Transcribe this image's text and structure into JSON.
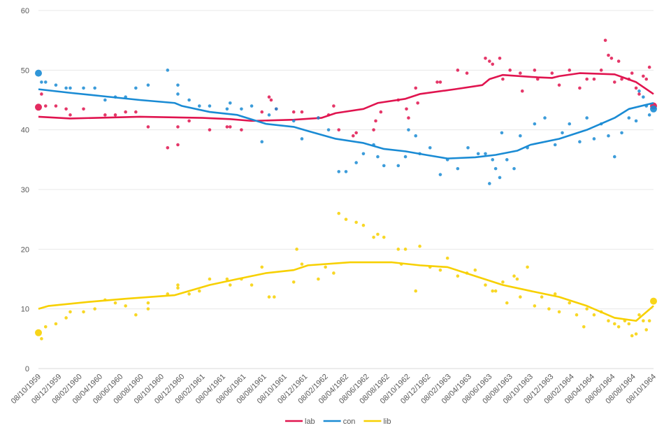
{
  "chart_data": {
    "type": "line",
    "title": "",
    "xlabel": "",
    "ylabel": "",
    "x_unit": "months since 08/10/1959",
    "xlim": [
      0,
      60
    ],
    "ylim": [
      0,
      60
    ],
    "y_ticks": [
      0,
      10,
      20,
      30,
      40,
      50,
      60
    ],
    "grid": true,
    "legend_position": "bottom",
    "x_tick_labels": [
      "08/10/1959",
      "08/12/1959",
      "08/02/1960",
      "08/04/1960",
      "08/06/1960",
      "08/08/1960",
      "08/10/1960",
      "08/12/1960",
      "08/02/1961",
      "08/04/1961",
      "08/06/1961",
      "08/08/1961",
      "08/10/1961",
      "08/12/1961",
      "08/02/1962",
      "08/04/1962",
      "08/06/1962",
      "08/08/1962",
      "08/10/1962",
      "08/12/1962",
      "08/02/1963",
      "08/04/1963",
      "08/06/1963",
      "08/08/1963",
      "08/10/1963",
      "08/12/1963",
      "08/02/1964",
      "08/04/1964",
      "08/06/1964",
      "08/08/1964",
      "08/10/1964"
    ],
    "series": [
      {
        "name": "lab",
        "color": "#e0144f",
        "trend": [
          [
            0,
            42.2
          ],
          [
            3.1,
            41.9
          ],
          [
            9.9,
            42.2
          ],
          [
            16,
            42.0
          ],
          [
            18.7,
            41.8
          ],
          [
            20.8,
            41.5
          ],
          [
            24.9,
            41.7
          ],
          [
            27.6,
            42
          ],
          [
            29,
            42.8
          ],
          [
            31.7,
            43.5
          ],
          [
            33.1,
            44.5
          ],
          [
            35.8,
            45.2
          ],
          [
            37.2,
            46
          ],
          [
            40.6,
            46.8
          ],
          [
            43.3,
            47.5
          ],
          [
            44,
            48.5
          ],
          [
            45.3,
            49.2
          ],
          [
            48.7,
            48.8
          ],
          [
            50.1,
            48.7
          ],
          [
            50.8,
            49
          ],
          [
            52.8,
            49.5
          ],
          [
            56.2,
            49.3
          ],
          [
            58.3,
            48
          ],
          [
            60,
            46
          ]
        ],
        "points": [
          [
            0,
            43.8
          ],
          [
            0.3,
            46
          ],
          [
            0.7,
            44
          ],
          [
            1.7,
            44
          ],
          [
            2.7,
            43.5
          ],
          [
            3.1,
            42.5
          ],
          [
            4.4,
            43.5
          ],
          [
            6.5,
            42.5
          ],
          [
            7.5,
            42.5
          ],
          [
            8.5,
            43
          ],
          [
            9.5,
            43
          ],
          [
            10.7,
            40.5
          ],
          [
            12.6,
            37
          ],
          [
            13.6,
            37.5
          ],
          [
            13.6,
            40.5
          ],
          [
            14.7,
            41.5
          ],
          [
            16.7,
            40
          ],
          [
            18.4,
            40.5
          ],
          [
            18.7,
            40.5
          ],
          [
            19.8,
            40
          ],
          [
            21.8,
            43
          ],
          [
            22.5,
            45.5
          ],
          [
            22.7,
            45
          ],
          [
            23.2,
            43.5
          ],
          [
            24.9,
            43
          ],
          [
            25.7,
            43
          ],
          [
            27.3,
            42
          ],
          [
            28.3,
            42.5
          ],
          [
            28.8,
            44
          ],
          [
            29.3,
            40
          ],
          [
            30.7,
            39
          ],
          [
            31.0,
            39.5
          ],
          [
            32.7,
            40
          ],
          [
            32.9,
            41.5
          ],
          [
            33.4,
            43
          ],
          [
            35.1,
            45
          ],
          [
            35.9,
            43.5
          ],
          [
            36.1,
            42
          ],
          [
            36.8,
            47
          ],
          [
            37.0,
            44.5
          ],
          [
            38.9,
            48
          ],
          [
            39.2,
            48
          ],
          [
            40.9,
            50
          ],
          [
            41.8,
            49.5
          ],
          [
            43.6,
            52
          ],
          [
            44.0,
            51.5
          ],
          [
            44.3,
            51
          ],
          [
            45.0,
            52
          ],
          [
            45.3,
            48.5
          ],
          [
            46.0,
            50
          ],
          [
            47.0,
            49.5
          ],
          [
            47.2,
            46.5
          ],
          [
            48.4,
            50
          ],
          [
            48.7,
            48.5
          ],
          [
            50.1,
            49.5
          ],
          [
            50.8,
            47.5
          ],
          [
            51.8,
            50
          ],
          [
            52.8,
            47
          ],
          [
            53.5,
            48.5
          ],
          [
            54.2,
            48.5
          ],
          [
            54.9,
            50
          ],
          [
            55.3,
            55
          ],
          [
            55.6,
            52.5
          ],
          [
            55.9,
            52
          ],
          [
            56.2,
            48
          ],
          [
            56.6,
            51.5
          ],
          [
            56.9,
            48.5
          ],
          [
            57.6,
            48.5
          ],
          [
            57.9,
            49.5
          ],
          [
            58.3,
            47
          ],
          [
            58.6,
            46
          ],
          [
            59.0,
            49
          ],
          [
            59.3,
            48.5
          ],
          [
            59.6,
            50.5
          ],
          [
            60.0,
            44
          ]
        ]
      },
      {
        "name": "con",
        "color": "#1a8bd4",
        "trend": [
          [
            0,
            46.8
          ],
          [
            3.1,
            46.2
          ],
          [
            6.5,
            45.6
          ],
          [
            9.9,
            45
          ],
          [
            13.3,
            44.5
          ],
          [
            14,
            44
          ],
          [
            16.7,
            43
          ],
          [
            19.4,
            42.5
          ],
          [
            22.2,
            41
          ],
          [
            24.9,
            40.5
          ],
          [
            26.3,
            39.8
          ],
          [
            29,
            38.5
          ],
          [
            31.7,
            37.8
          ],
          [
            33.7,
            36.8
          ],
          [
            35.8,
            36.4
          ],
          [
            37.8,
            35.8
          ],
          [
            39.9,
            35.2
          ],
          [
            42.6,
            35.4
          ],
          [
            44.6,
            35.8
          ],
          [
            46.7,
            36.5
          ],
          [
            48,
            37.5
          ],
          [
            50.8,
            38.5
          ],
          [
            53.5,
            40
          ],
          [
            56.2,
            42
          ],
          [
            57.6,
            43.5
          ],
          [
            60,
            44.5
          ]
        ],
        "points": [
          [
            0,
            49.5
          ],
          [
            0.3,
            48
          ],
          [
            0.7,
            48
          ],
          [
            1.7,
            47.5
          ],
          [
            2.7,
            47
          ],
          [
            3.1,
            47
          ],
          [
            4.4,
            47
          ],
          [
            5.5,
            47
          ],
          [
            6.5,
            45
          ],
          [
            7.5,
            45.5
          ],
          [
            8.5,
            45.5
          ],
          [
            9.5,
            47
          ],
          [
            10.7,
            47.5
          ],
          [
            12.6,
            50
          ],
          [
            13.6,
            47.5
          ],
          [
            13.6,
            46
          ],
          [
            14.7,
            45
          ],
          [
            15.7,
            44
          ],
          [
            16.7,
            44
          ],
          [
            18.4,
            43.5
          ],
          [
            18.7,
            44.5
          ],
          [
            19.8,
            43.5
          ],
          [
            20.8,
            44
          ],
          [
            21.8,
            38
          ],
          [
            22.5,
            42.5
          ],
          [
            23.2,
            43.5
          ],
          [
            24.9,
            41.5
          ],
          [
            25.7,
            38.5
          ],
          [
            27.3,
            42
          ],
          [
            28.3,
            40
          ],
          [
            29.3,
            33
          ],
          [
            30.0,
            33
          ],
          [
            31.0,
            34.5
          ],
          [
            31.7,
            36
          ],
          [
            32.7,
            37.5
          ],
          [
            33.1,
            35.5
          ],
          [
            33.7,
            34
          ],
          [
            35.1,
            34
          ],
          [
            35.8,
            35.5
          ],
          [
            36.1,
            40
          ],
          [
            36.8,
            39
          ],
          [
            37.2,
            36
          ],
          [
            38.2,
            37
          ],
          [
            39.2,
            32.5
          ],
          [
            39.9,
            35
          ],
          [
            40.9,
            33.5
          ],
          [
            41.9,
            37
          ],
          [
            42.9,
            36
          ],
          [
            43.6,
            36
          ],
          [
            44.0,
            31
          ],
          [
            44.3,
            35
          ],
          [
            44.6,
            33.5
          ],
          [
            45.0,
            32
          ],
          [
            45.2,
            39.5
          ],
          [
            45.7,
            35
          ],
          [
            46.4,
            33.5
          ],
          [
            47.0,
            39
          ],
          [
            47.7,
            37
          ],
          [
            48.4,
            41
          ],
          [
            49.4,
            42
          ],
          [
            50.4,
            37.5
          ],
          [
            51.1,
            39.5
          ],
          [
            51.8,
            41
          ],
          [
            52.8,
            38
          ],
          [
            53.5,
            42
          ],
          [
            54.2,
            38.5
          ],
          [
            54.9,
            41
          ],
          [
            55.6,
            39
          ],
          [
            56.2,
            35.5
          ],
          [
            56.9,
            39.5
          ],
          [
            57.6,
            42
          ],
          [
            58.3,
            41.5
          ],
          [
            58.6,
            46.5
          ],
          [
            59.0,
            45.5
          ],
          [
            59.3,
            44
          ],
          [
            59.6,
            42.5
          ],
          [
            60.0,
            43.5
          ]
        ]
      },
      {
        "name": "lib",
        "color": "#f7d000",
        "trend": [
          [
            0,
            10
          ],
          [
            1,
            10.5
          ],
          [
            5.1,
            11.2
          ],
          [
            8.5,
            11.7
          ],
          [
            13.3,
            12.3
          ],
          [
            16.7,
            14
          ],
          [
            19.4,
            15
          ],
          [
            22.2,
            16
          ],
          [
            24.9,
            16.5
          ],
          [
            26.3,
            17.3
          ],
          [
            30.4,
            17.8
          ],
          [
            34.5,
            17.8
          ],
          [
            37.2,
            17.3
          ],
          [
            39.9,
            17
          ],
          [
            42.6,
            15.5
          ],
          [
            45.3,
            14
          ],
          [
            48,
            13
          ],
          [
            50.8,
            12
          ],
          [
            53.5,
            10.5
          ],
          [
            56.2,
            8.5
          ],
          [
            58.3,
            8
          ],
          [
            60,
            10.5
          ]
        ],
        "points": [
          [
            0,
            6
          ],
          [
            0.3,
            5
          ],
          [
            0.7,
            7
          ],
          [
            1.7,
            7.5
          ],
          [
            2.7,
            8.5
          ],
          [
            3.1,
            9.5
          ],
          [
            4.4,
            9.5
          ],
          [
            5.5,
            10
          ],
          [
            6.5,
            11.5
          ],
          [
            7.5,
            11
          ],
          [
            8.5,
            10.5
          ],
          [
            9.5,
            9
          ],
          [
            10.7,
            10
          ],
          [
            10.7,
            11
          ],
          [
            12.6,
            12.5
          ],
          [
            13.6,
            13.5
          ],
          [
            13.6,
            14
          ],
          [
            14.7,
            12.5
          ],
          [
            15.7,
            13
          ],
          [
            16.7,
            15
          ],
          [
            18.4,
            15
          ],
          [
            18.7,
            14
          ],
          [
            19.8,
            15
          ],
          [
            20.8,
            14
          ],
          [
            21.8,
            17
          ],
          [
            22.5,
            12
          ],
          [
            23.0,
            12
          ],
          [
            24.9,
            14.5
          ],
          [
            25.2,
            20
          ],
          [
            25.7,
            17.5
          ],
          [
            27.3,
            15
          ],
          [
            28.0,
            17
          ],
          [
            28.8,
            16
          ],
          [
            29.3,
            26
          ],
          [
            30.0,
            25
          ],
          [
            31.0,
            24.5
          ],
          [
            31.7,
            24
          ],
          [
            32.7,
            22
          ],
          [
            33.1,
            22.5
          ],
          [
            33.7,
            22
          ],
          [
            35.1,
            20
          ],
          [
            35.4,
            17.5
          ],
          [
            35.8,
            20
          ],
          [
            36.8,
            13
          ],
          [
            37.2,
            20.5
          ],
          [
            38.2,
            17
          ],
          [
            39.2,
            16.5
          ],
          [
            39.9,
            18.5
          ],
          [
            40.9,
            15.5
          ],
          [
            41.8,
            16
          ],
          [
            42.6,
            16.5
          ],
          [
            43.6,
            14
          ],
          [
            44.3,
            13
          ],
          [
            44.6,
            13
          ],
          [
            45.3,
            14.5
          ],
          [
            45.7,
            11
          ],
          [
            46.4,
            15.5
          ],
          [
            46.7,
            15
          ],
          [
            47.0,
            12
          ],
          [
            47.7,
            17
          ],
          [
            48.4,
            10.5
          ],
          [
            49.1,
            12
          ],
          [
            49.8,
            10
          ],
          [
            50.4,
            12.5
          ],
          [
            50.8,
            9.5
          ],
          [
            51.8,
            11
          ],
          [
            52.5,
            9
          ],
          [
            53.2,
            7
          ],
          [
            53.5,
            10
          ],
          [
            54.2,
            9
          ],
          [
            54.9,
            9.5
          ],
          [
            55.6,
            8
          ],
          [
            56.2,
            7.5
          ],
          [
            56.6,
            7
          ],
          [
            57.2,
            8
          ],
          [
            57.6,
            7.5
          ],
          [
            57.9,
            5.5
          ],
          [
            58.3,
            5.8
          ],
          [
            58.6,
            9
          ],
          [
            59.0,
            8
          ],
          [
            59.3,
            6.5
          ],
          [
            59.6,
            8
          ],
          [
            60.0,
            11.3
          ]
        ]
      }
    ]
  }
}
